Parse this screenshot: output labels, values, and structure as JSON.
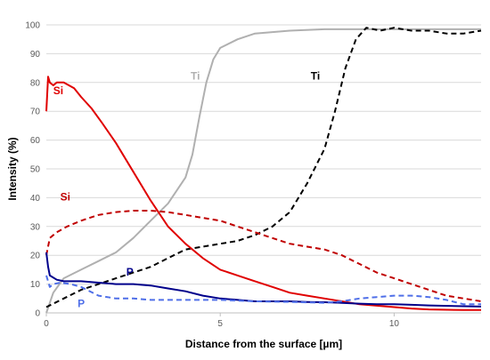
{
  "chart_data": {
    "type": "line",
    "title": "",
    "xlabel": "Distance from the surface [µm]",
    "ylabel": "Intensity (%)",
    "xlim": [
      0,
      12.5
    ],
    "ylim": [
      0,
      100
    ],
    "x_ticks": [
      0,
      5,
      10
    ],
    "y_ticks": [
      0,
      10,
      20,
      30,
      40,
      50,
      60,
      70,
      80,
      90,
      100
    ],
    "x_tick_labels": [
      "0",
      "5",
      "10"
    ],
    "y_tick_labels": [
      "0",
      "10",
      "20",
      "30",
      "40",
      "50",
      "60",
      "70",
      "80",
      "90",
      "100"
    ],
    "grid": "horizontal",
    "legend": "none",
    "series": [
      {
        "label": "Ti",
        "color": "#b0b0b0",
        "style": "solid",
        "label_position": [
          4.15,
          81
        ],
        "points": [
          [
            0,
            0
          ],
          [
            0.2,
            7
          ],
          [
            0.5,
            12
          ],
          [
            1,
            15
          ],
          [
            1.5,
            18
          ],
          [
            2,
            21
          ],
          [
            2.5,
            26
          ],
          [
            3,
            32
          ],
          [
            3.5,
            38
          ],
          [
            4,
            47
          ],
          [
            4.2,
            55
          ],
          [
            4.4,
            68
          ],
          [
            4.6,
            80
          ],
          [
            4.8,
            88
          ],
          [
            5,
            92
          ],
          [
            5.5,
            95
          ],
          [
            6,
            97
          ],
          [
            7,
            98
          ],
          [
            8,
            98.5
          ],
          [
            9,
            98.5
          ],
          [
            10,
            98.5
          ],
          [
            11,
            98.5
          ],
          [
            12,
            98.5
          ],
          [
            12.5,
            98.5
          ]
        ]
      },
      {
        "label": "Ti",
        "color": "#000000",
        "style": "dashed",
        "label_position": [
          7.6,
          81
        ],
        "points": [
          [
            0,
            2
          ],
          [
            0.5,
            5
          ],
          [
            1,
            8
          ],
          [
            1.5,
            10
          ],
          [
            2,
            12
          ],
          [
            2.5,
            14
          ],
          [
            3,
            16
          ],
          [
            3.5,
            19
          ],
          [
            4,
            22
          ],
          [
            4.5,
            23
          ],
          [
            5,
            24
          ],
          [
            5.5,
            25
          ],
          [
            6,
            27
          ],
          [
            6.5,
            30
          ],
          [
            7,
            35
          ],
          [
            7.5,
            45
          ],
          [
            8,
            57
          ],
          [
            8.3,
            70
          ],
          [
            8.6,
            85
          ],
          [
            8.9,
            95
          ],
          [
            9.2,
            99
          ],
          [
            9.6,
            98
          ],
          [
            10,
            99
          ],
          [
            10.5,
            98
          ],
          [
            11,
            98
          ],
          [
            11.5,
            97
          ],
          [
            12,
            97
          ],
          [
            12.5,
            98
          ]
        ]
      },
      {
        "label": "Si",
        "color": "#e00000",
        "style": "solid",
        "label_position": [
          0.2,
          76
        ],
        "points": [
          [
            0,
            70
          ],
          [
            0.05,
            82
          ],
          [
            0.1,
            80
          ],
          [
            0.2,
            79
          ],
          [
            0.3,
            80
          ],
          [
            0.5,
            80
          ],
          [
            0.8,
            78
          ],
          [
            1,
            75
          ],
          [
            1.3,
            71
          ],
          [
            1.6,
            66
          ],
          [
            2,
            59
          ],
          [
            2.5,
            49
          ],
          [
            3,
            39
          ],
          [
            3.5,
            30
          ],
          [
            4,
            24
          ],
          [
            4.5,
            19
          ],
          [
            5,
            15
          ],
          [
            5.5,
            13
          ],
          [
            6,
            11
          ],
          [
            6.5,
            9
          ],
          [
            7,
            7
          ],
          [
            7.5,
            6
          ],
          [
            8,
            5
          ],
          [
            8.5,
            4
          ],
          [
            9,
            3
          ],
          [
            9.5,
            2.5
          ],
          [
            10,
            2
          ],
          [
            10.5,
            1.5
          ],
          [
            11,
            1.2
          ],
          [
            12,
            1
          ],
          [
            12.5,
            1
          ]
        ]
      },
      {
        "label": "Si",
        "color": "#c00000",
        "style": "dashed",
        "label_position": [
          0.4,
          39
        ],
        "points": [
          [
            0,
            20
          ],
          [
            0.1,
            26
          ],
          [
            0.3,
            28
          ],
          [
            0.6,
            30
          ],
          [
            1,
            32
          ],
          [
            1.5,
            34
          ],
          [
            2,
            35
          ],
          [
            2.5,
            35.5
          ],
          [
            3,
            35.5
          ],
          [
            3.5,
            35
          ],
          [
            4,
            34
          ],
          [
            4.5,
            33
          ],
          [
            5,
            32
          ],
          [
            5.5,
            30
          ],
          [
            6,
            28
          ],
          [
            6.5,
            26
          ],
          [
            7,
            24
          ],
          [
            7.5,
            23
          ],
          [
            8,
            22
          ],
          [
            8.5,
            20
          ],
          [
            9,
            17
          ],
          [
            9.5,
            14
          ],
          [
            10,
            12
          ],
          [
            10.5,
            10
          ],
          [
            11,
            8
          ],
          [
            11.5,
            6
          ],
          [
            12,
            5
          ],
          [
            12.5,
            4
          ]
        ]
      },
      {
        "label": "P",
        "color": "#00008b",
        "style": "solid",
        "label_position": [
          2.3,
          13
        ],
        "points": [
          [
            0,
            21
          ],
          [
            0.05,
            16
          ],
          [
            0.1,
            13
          ],
          [
            0.3,
            11.5
          ],
          [
            0.5,
            11
          ],
          [
            1,
            11
          ],
          [
            1.5,
            10.5
          ],
          [
            2,
            10
          ],
          [
            2.5,
            10
          ],
          [
            3,
            9.5
          ],
          [
            3.5,
            8.5
          ],
          [
            4,
            7.5
          ],
          [
            4.5,
            6
          ],
          [
            5,
            5
          ],
          [
            5.5,
            4.5
          ],
          [
            6,
            4
          ],
          [
            6.5,
            4
          ],
          [
            7,
            4
          ],
          [
            7.5,
            3.8
          ],
          [
            8,
            3.7
          ],
          [
            8.5,
            3.5
          ],
          [
            9,
            3.2
          ],
          [
            9.5,
            3
          ],
          [
            10,
            3
          ],
          [
            10.5,
            2.8
          ],
          [
            11,
            2.6
          ],
          [
            12,
            2.3
          ],
          [
            12.5,
            2.2
          ]
        ]
      },
      {
        "label": "P",
        "color": "#4f6fe8",
        "style": "dashed",
        "label_position": [
          0.9,
          2
        ],
        "points": [
          [
            0,
            13
          ],
          [
            0.1,
            9
          ],
          [
            0.2,
            10
          ],
          [
            0.4,
            10.5
          ],
          [
            0.7,
            10
          ],
          [
            1,
            9
          ],
          [
            1.5,
            6
          ],
          [
            2,
            5
          ],
          [
            2.5,
            5
          ],
          [
            3,
            4.5
          ],
          [
            3.5,
            4.5
          ],
          [
            4,
            4.5
          ],
          [
            5,
            4.5
          ],
          [
            6,
            4
          ],
          [
            7,
            3.8
          ],
          [
            8,
            3.5
          ],
          [
            8.5,
            4
          ],
          [
            9,
            5
          ],
          [
            9.5,
            5.5
          ],
          [
            10,
            6
          ],
          [
            10.5,
            6
          ],
          [
            11,
            5.5
          ],
          [
            11.5,
            4.5
          ],
          [
            12,
            3
          ],
          [
            12.5,
            3
          ]
        ]
      }
    ]
  }
}
